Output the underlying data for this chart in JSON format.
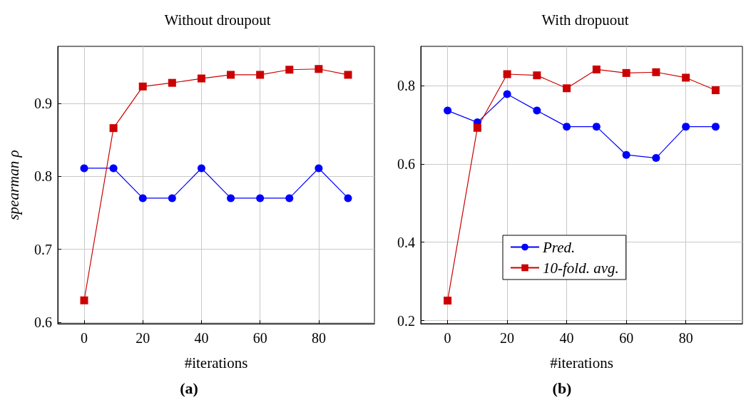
{
  "chart_data": [
    {
      "type": "line",
      "title": "Without droupout",
      "xlabel": "#iterations",
      "ylabel": "spearman ρ",
      "annotations": [
        "(a)"
      ],
      "x": [
        0,
        10,
        20,
        30,
        40,
        50,
        60,
        70,
        80,
        90
      ],
      "series": [
        {
          "color": "#0000ff",
          "marker": "circle",
          "values": [
            0.811,
            0.811,
            0.77,
            0.77,
            0.811,
            0.77,
            0.77,
            0.77,
            0.811,
            0.77
          ]
        },
        {
          "color": "#cc0000",
          "marker": "square",
          "values": [
            0.63,
            0.866,
            0.923,
            0.928,
            0.934,
            0.939,
            0.939,
            0.946,
            0.947,
            0.939
          ]
        }
      ],
      "xlim": [
        -9,
        99
      ],
      "xticks": [
        0,
        20,
        40,
        60,
        80
      ],
      "ylim": [
        0.598,
        0.978
      ],
      "yticks": [
        0.6,
        0.7,
        0.8,
        0.9
      ],
      "grid": true,
      "legend": false
    },
    {
      "type": "line",
      "title": "With dropuout",
      "xlabel": "#iterations",
      "annotations": [
        "(b)"
      ],
      "x": [
        0,
        10,
        20,
        30,
        40,
        50,
        60,
        70,
        80,
        90
      ],
      "series": [
        {
          "name": "Pred.",
          "color": "#0000ff",
          "marker": "circle",
          "values": [
            0.736,
            0.706,
            0.778,
            0.736,
            0.695,
            0.695,
            0.623,
            0.615,
            0.695,
            0.695
          ]
        },
        {
          "name": "10-fold. avg.",
          "color": "#cc0000",
          "marker": "square",
          "values": [
            0.251,
            0.692,
            0.829,
            0.826,
            0.793,
            0.841,
            0.832,
            0.834,
            0.82,
            0.788
          ]
        }
      ],
      "xlim": [
        -9,
        99
      ],
      "xticks": [
        0,
        20,
        40,
        60,
        80
      ],
      "ylim": [
        0.192,
        0.9
      ],
      "yticks": [
        0.2,
        0.4,
        0.6,
        0.8
      ],
      "grid": true,
      "legend": "bottom"
    }
  ]
}
